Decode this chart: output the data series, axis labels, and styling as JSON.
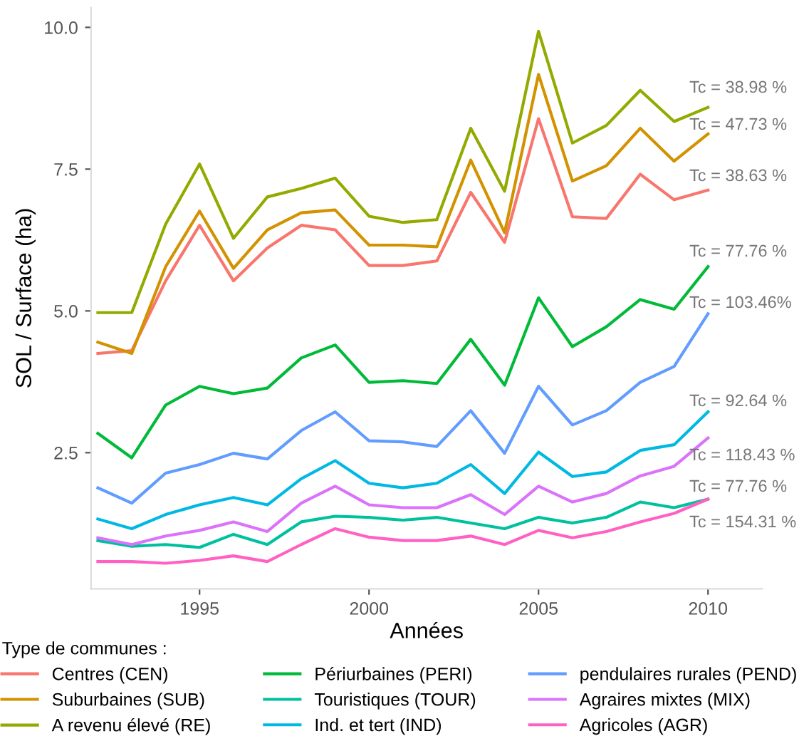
{
  "chart_data": {
    "type": "line",
    "xlabel": "Années",
    "ylabel": "SOL / Surface (ha)",
    "legend_title": "Type de communes :",
    "x": [
      1992,
      1993,
      1994,
      1995,
      1996,
      1997,
      1998,
      1999,
      2000,
      2001,
      2002,
      2003,
      2004,
      2005,
      2006,
      2007,
      2008,
      2009,
      2010
    ],
    "series": [
      {
        "name": "Centres (CEN)",
        "color": "#f8766d",
        "values": [
          4.25,
          4.3,
          5.53,
          6.51,
          5.53,
          6.11,
          6.51,
          6.43,
          5.8,
          5.8,
          5.88,
          7.09,
          6.21,
          8.39,
          6.66,
          6.63,
          7.41,
          6.96,
          7.13
        ]
      },
      {
        "name": "Suburbaines (SUB)",
        "color": "#d39200",
        "values": [
          4.45,
          4.25,
          5.78,
          6.76,
          5.75,
          6.43,
          6.73,
          6.78,
          6.16,
          6.16,
          6.13,
          7.66,
          6.38,
          9.17,
          7.29,
          7.56,
          8.22,
          7.64,
          8.12
        ]
      },
      {
        "name": "A revenu élevé (RE)",
        "color": "#93aa00",
        "values": [
          4.97,
          4.97,
          6.53,
          7.59,
          6.28,
          7.01,
          7.16,
          7.34,
          6.67,
          6.56,
          6.61,
          8.22,
          7.11,
          9.93,
          7.96,
          8.27,
          8.89,
          8.34,
          8.59
        ]
      },
      {
        "name": "Périurbaines (PERI)",
        "color": "#00ba38",
        "values": [
          2.84,
          2.41,
          3.34,
          3.67,
          3.54,
          3.64,
          4.17,
          4.4,
          3.74,
          3.77,
          3.72,
          4.5,
          3.69,
          5.23,
          4.37,
          4.72,
          5.2,
          5.03,
          5.78
        ]
      },
      {
        "name": "Touristiques (TOUR)",
        "color": "#00c19f",
        "values": [
          0.95,
          0.85,
          0.88,
          0.83,
          1.06,
          0.88,
          1.28,
          1.38,
          1.36,
          1.31,
          1.36,
          1.26,
          1.16,
          1.36,
          1.26,
          1.36,
          1.63,
          1.53,
          1.68
        ]
      },
      {
        "name": "Ind. et tert (IND)",
        "color": "#00b9e3",
        "values": [
          1.33,
          1.16,
          1.41,
          1.58,
          1.71,
          1.58,
          2.04,
          2.36,
          1.96,
          1.88,
          1.96,
          2.29,
          1.78,
          2.51,
          2.08,
          2.16,
          2.54,
          2.64,
          3.22
        ]
      },
      {
        "name": "pendulaires rurales (PEND)",
        "color": "#619cff",
        "values": [
          1.88,
          1.61,
          2.14,
          2.29,
          2.49,
          2.39,
          2.89,
          3.22,
          2.71,
          2.69,
          2.61,
          3.24,
          2.49,
          3.67,
          2.99,
          3.24,
          3.74,
          4.02,
          4.95
        ]
      },
      {
        "name": "Agraires mixtes (MIX)",
        "color": "#db72fb",
        "values": [
          1.0,
          0.88,
          1.03,
          1.13,
          1.28,
          1.11,
          1.61,
          1.91,
          1.58,
          1.53,
          1.53,
          1.76,
          1.41,
          1.91,
          1.63,
          1.78,
          2.09,
          2.26,
          2.76
        ]
      },
      {
        "name": "Agricoles (AGR)",
        "color": "#ff61c3",
        "values": [
          0.58,
          0.58,
          0.55,
          0.6,
          0.68,
          0.58,
          0.88,
          1.16,
          1.01,
          0.95,
          0.95,
          1.03,
          0.88,
          1.13,
          1.0,
          1.11,
          1.28,
          1.43,
          1.68
        ]
      }
    ],
    "annotations": [
      "Tc = 38.98 %",
      "Tc = 47.73 %",
      "Tc = 38.63 %",
      "Tc = 77.76 %",
      "Tc = 103.46%",
      "Tc = 92.64 %",
      "Tc = 118.43 %",
      "Tc = 77.76 %",
      "Tc = 154.31 %"
    ],
    "xlim": [
      1991.8,
      2011.6
    ],
    "xticks": [
      1995,
      2000,
      2005,
      2010
    ],
    "ylim": [
      0.1,
      10.35
    ],
    "yticks": [
      {
        "value": 2.5,
        "label": "2.5"
      },
      {
        "value": 5,
        "label": "5.0"
      },
      {
        "value": 7.5,
        "label": "7.5"
      },
      {
        "value": 10,
        "label": "10.0"
      }
    ],
    "grid": false,
    "legend": "bottom",
    "marker": "none",
    "line_style": "solid"
  }
}
